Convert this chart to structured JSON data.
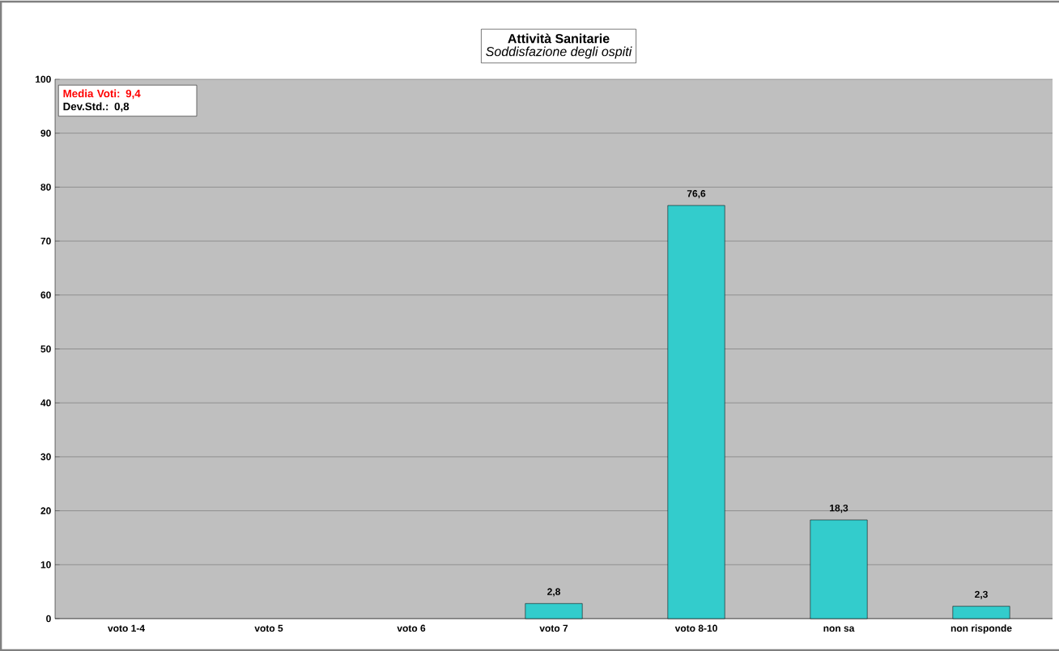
{
  "chart_data": {
    "type": "bar",
    "title": "Attività Sanitarie",
    "subtitle": "Soddisfazione degli ospiti",
    "categories": [
      "voto 1-4",
      "voto 5",
      "voto 6",
      "voto 7",
      "voto 8-10",
      "non sa",
      "non risponde"
    ],
    "values": [
      null,
      null,
      null,
      2.8,
      76.6,
      18.3,
      2.3
    ],
    "value_labels": [
      null,
      null,
      null,
      "2,8",
      "76,6",
      "18,3",
      "2,3"
    ],
    "color": "#33cccc",
    "ylim": [
      0,
      100
    ],
    "yticks": [
      0,
      10,
      20,
      30,
      40,
      50,
      60,
      70,
      80,
      90,
      100
    ],
    "grid": "y",
    "annotations": [
      "Media Voti: 9,4",
      "Dev.Std.: 0,8"
    ]
  }
}
